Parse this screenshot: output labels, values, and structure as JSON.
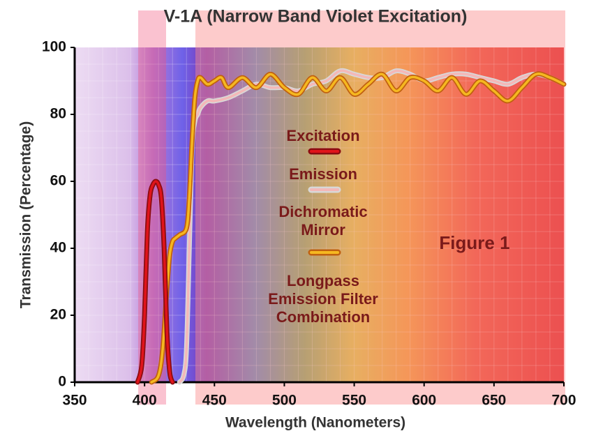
{
  "chart_data": {
    "type": "line",
    "title": "V-1A (Narrow Band Violet Excitation)",
    "x_label": "Wavelength (Nanometers)",
    "y_label": "Transmission (Percentage)",
    "annotation": "Figure 1",
    "caption": "Longpass Emission Filter Combination",
    "xlim": [
      350,
      700
    ],
    "xticks": [
      350,
      400,
      450,
      500,
      550,
      600,
      650,
      700
    ],
    "ylim": [
      0,
      100
    ],
    "yticks": [
      0,
      20,
      40,
      60,
      80,
      100
    ],
    "series": [
      {
        "name": "Excitation",
        "color": "#e0141a",
        "x": [
          395,
          398,
          400,
          402,
          404,
          406,
          408,
          410,
          412,
          414,
          416,
          418,
          420
        ],
        "values": [
          0,
          5,
          20,
          45,
          56,
          59,
          60,
          59,
          55,
          40,
          15,
          3,
          0
        ]
      },
      {
        "name": "Emission",
        "color": "#f4b8b8",
        "x": [
          425,
          428,
          430,
          432,
          434,
          436,
          438,
          440,
          445,
          450,
          460,
          470,
          480,
          490,
          500,
          510,
          520,
          530,
          540,
          550,
          560,
          570,
          580,
          590,
          600,
          610,
          620,
          630,
          640,
          650,
          660,
          670,
          680,
          690,
          700
        ],
        "values": [
          0,
          2,
          10,
          40,
          70,
          78,
          80,
          82,
          84,
          84,
          85,
          87,
          89,
          88,
          88,
          87,
          89,
          90,
          93,
          92,
          91,
          91,
          93,
          92,
          90,
          91,
          92,
          92,
          91,
          90,
          89,
          91,
          92,
          91,
          89
        ]
      },
      {
        "name": "Dichromatic Mirror",
        "color": "#f5b820",
        "x": [
          405,
          410,
          413,
          416,
          418,
          420,
          422,
          425,
          430,
          432,
          434,
          436,
          438,
          440,
          445,
          450,
          455,
          460,
          470,
          480,
          490,
          500,
          510,
          520,
          530,
          540,
          550,
          560,
          570,
          580,
          590,
          600,
          610,
          620,
          630,
          640,
          650,
          660,
          670,
          680,
          690,
          700
        ],
        "values": [
          0,
          2,
          10,
          28,
          38,
          42,
          43,
          44,
          46,
          55,
          72,
          85,
          90,
          91,
          89,
          90,
          91,
          88,
          91,
          88,
          92,
          88,
          86,
          91,
          87,
          91,
          86,
          89,
          92,
          87,
          91,
          90,
          87,
          91,
          86,
          90,
          87,
          84,
          88,
          92,
          91,
          89
        ]
      }
    ]
  }
}
